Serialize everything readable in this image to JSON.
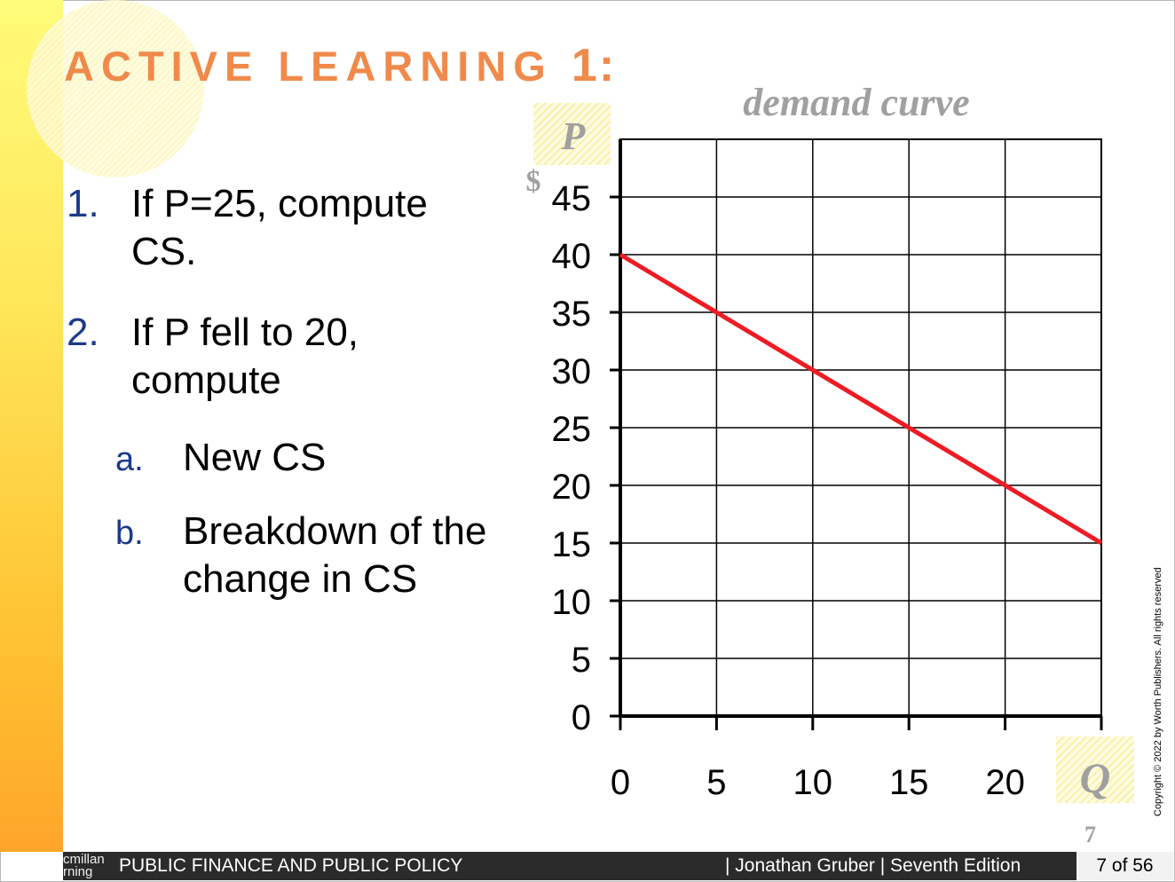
{
  "slide": {
    "title_word": "ACTIVE LEARNING",
    "title_num": "1:",
    "questions": [
      {
        "marker": "1.",
        "lines": [
          "If P=25, compute",
          "CS."
        ]
      },
      {
        "marker": "2.",
        "lines": [
          "If P fell to 20,",
          "compute"
        ]
      }
    ],
    "subitems": [
      {
        "marker": "a.",
        "lines": [
          "New CS"
        ]
      },
      {
        "marker": "b.",
        "lines": [
          "Breakdown of the",
          "change in CS"
        ]
      }
    ],
    "slide_number": "7",
    "copyright": "Copyright © 2022 by Worth Publishers. All rights reserved"
  },
  "footer": {
    "publisher_fragment": "cmillan\nrning",
    "course": "PUBLIC FINANCE AND PUBLIC POLICY",
    "author": "| Jonathan Gruber | Seventh Edition",
    "page": "7 of 56"
  },
  "chart_data": {
    "type": "line",
    "title": "demand curve",
    "ylabel": "P",
    "yunit": "$",
    "xlabel": "Q",
    "xlim": [
      0,
      25
    ],
    "ylim": [
      0,
      50
    ],
    "xticks": [
      0,
      5,
      10,
      15,
      20
    ],
    "yticks": [
      0,
      5,
      10,
      15,
      20,
      25,
      30,
      35,
      40,
      45
    ],
    "grid": true,
    "series": [
      {
        "color": "#ee1c25",
        "x": [
          0,
          25
        ],
        "y": [
          40,
          15
        ]
      }
    ]
  }
}
